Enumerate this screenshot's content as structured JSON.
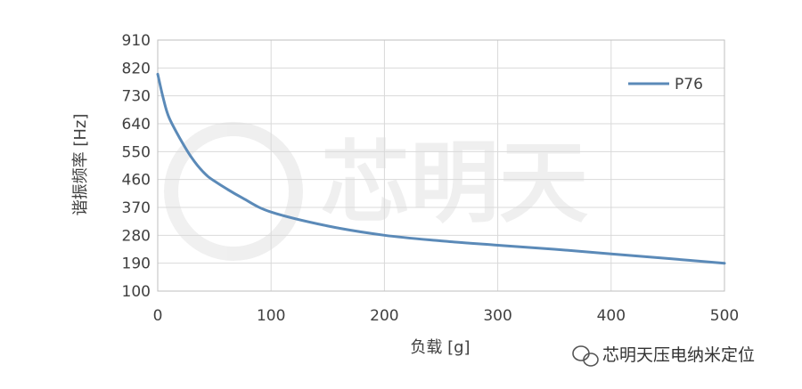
{
  "chart_data": {
    "type": "line",
    "xlabel": "负载 [g]",
    "ylabel": "谐振频率 [Hz]",
    "xlim": [
      0,
      500
    ],
    "ylim": [
      100,
      910
    ],
    "x_ticks": [
      "0",
      "100",
      "200",
      "300",
      "400",
      "500"
    ],
    "y_ticks": [
      "100",
      "190",
      "280",
      "370",
      "460",
      "550",
      "640",
      "730",
      "820",
      "910"
    ],
    "grid": true,
    "legend_position": "top-right",
    "series": [
      {
        "name": "P76",
        "color": "#5b8ab8",
        "x": [
          0,
          5,
          10,
          20,
          30,
          40,
          50,
          75,
          100,
          150,
          200,
          250,
          300,
          350,
          400,
          450,
          500
        ],
        "y": [
          800,
          720,
          660,
          590,
          530,
          485,
          455,
          400,
          355,
          310,
          280,
          262,
          248,
          235,
          220,
          205,
          190
        ]
      }
    ]
  },
  "watermark": {
    "logo_text": "芯明天",
    "caption": "芯明天压电纳米定位"
  }
}
